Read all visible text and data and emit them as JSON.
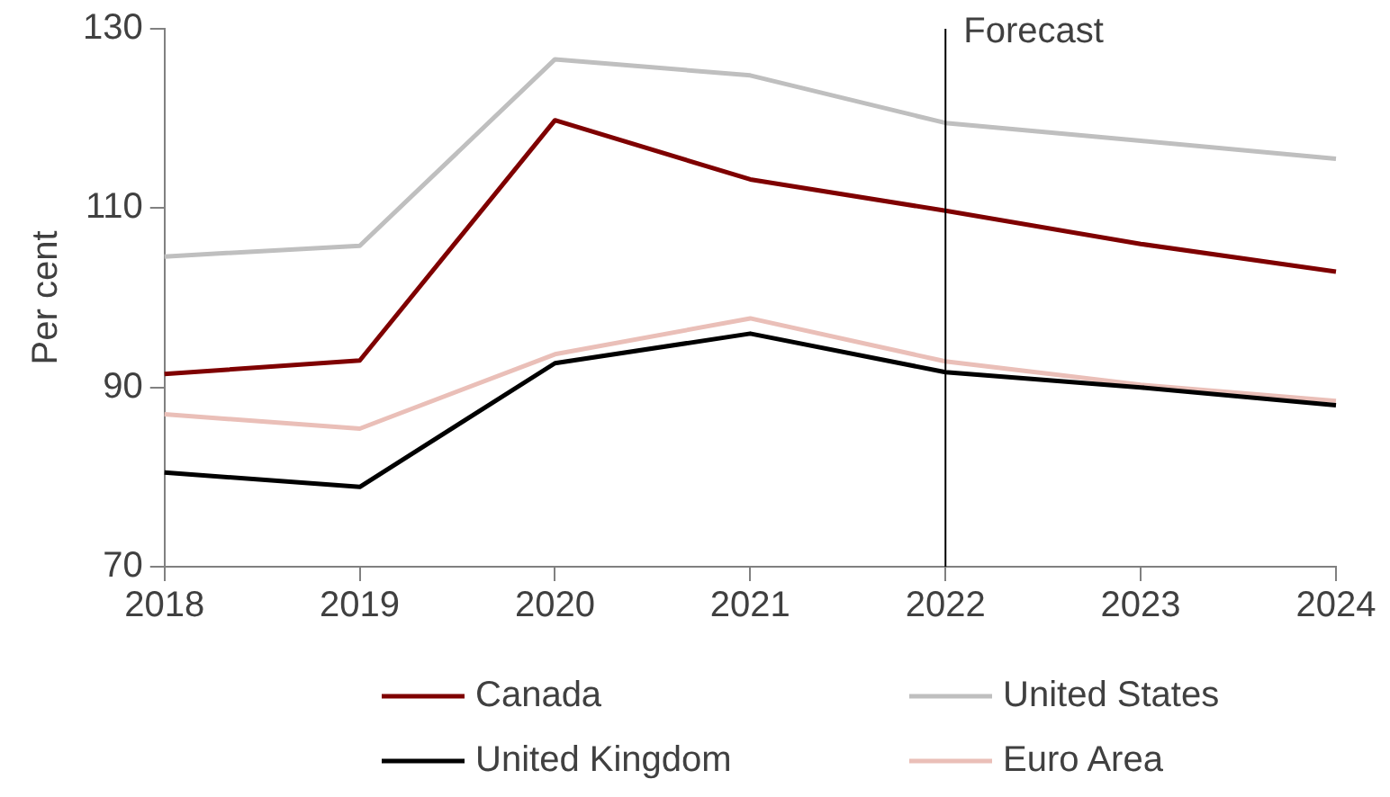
{
  "chart_data": {
    "type": "line",
    "ylabel": "Per cent",
    "categories": [
      "2018",
      "2019",
      "2020",
      "2021",
      "2022",
      "2023",
      "2024"
    ],
    "series": [
      {
        "name": "Canada",
        "color": "#7f0000",
        "values": [
          91.5,
          93.0,
          119.8,
          113.2,
          109.7,
          106.0,
          102.9
        ]
      },
      {
        "name": "United States",
        "color": "#bfbfbf",
        "values": [
          104.6,
          105.8,
          126.6,
          124.8,
          119.5,
          117.5,
          115.5
        ]
      },
      {
        "name": "United Kingdom",
        "color": "#000000",
        "values": [
          80.5,
          78.9,
          92.7,
          96.0,
          91.7,
          90.0,
          88.0
        ]
      },
      {
        "name": "Euro Area",
        "color": "#eabfb8",
        "values": [
          87.0,
          85.4,
          93.7,
          97.7,
          92.9,
          90.3,
          88.5
        ]
      }
    ],
    "ylim": [
      70,
      130
    ],
    "yticks": [
      70,
      90,
      110,
      130
    ],
    "grid": false,
    "legend": "bottom",
    "marker": "none",
    "line_style": "solid",
    "ref_lines": [
      {
        "axis": "x",
        "value": "2022",
        "label": "Forecast",
        "color": "#000000"
      }
    ]
  }
}
